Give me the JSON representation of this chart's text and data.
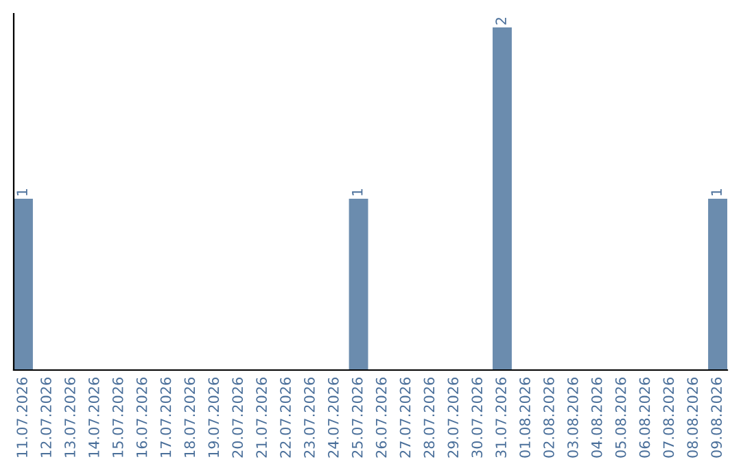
{
  "chart_data": {
    "type": "bar",
    "categories": [
      "11.07.2026",
      "12.07.2026",
      "13.07.2026",
      "14.07.2026",
      "15.07.2026",
      "16.07.2026",
      "17.07.2026",
      "18.07.2026",
      "19.07.2026",
      "20.07.2026",
      "21.07.2026",
      "22.07.2026",
      "23.07.2026",
      "24.07.2026",
      "25.07.2026",
      "26.07.2026",
      "27.07.2026",
      "28.07.2026",
      "29.07.2026",
      "30.07.2026",
      "31.07.2026",
      "01.08.2026",
      "02.08.2026",
      "03.08.2026",
      "04.08.2026",
      "05.08.2026",
      "06.08.2026",
      "07.08.2026",
      "08.08.2026",
      "09.08.2026"
    ],
    "values": [
      1,
      0,
      0,
      0,
      0,
      0,
      0,
      0,
      0,
      0,
      0,
      0,
      0,
      0,
      1,
      0,
      0,
      0,
      0,
      0,
      2,
      0,
      0,
      0,
      0,
      0,
      0,
      0,
      0,
      1
    ],
    "value_labels": [
      "1",
      null,
      null,
      null,
      null,
      null,
      null,
      null,
      null,
      null,
      null,
      null,
      null,
      null,
      "1",
      null,
      null,
      null,
      null,
      null,
      "2",
      null,
      null,
      null,
      null,
      null,
      null,
      null,
      null,
      "1"
    ],
    "color": "#6b8cae",
    "tick_labels": "x",
    "grid": false,
    "legend": false
  }
}
